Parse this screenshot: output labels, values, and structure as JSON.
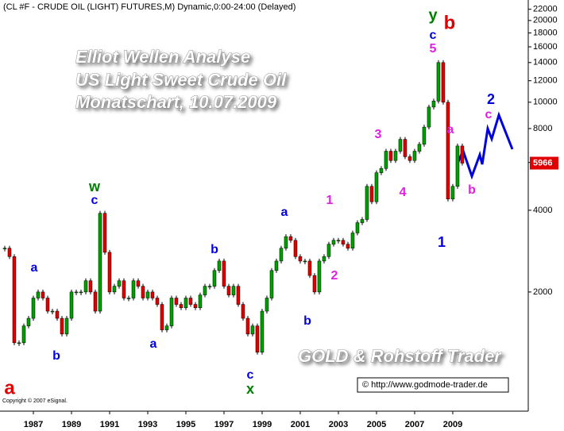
{
  "chart_data": {
    "type": "candlestick",
    "title": "(CL #F - CRUDE OIL (LIGHT) FUTURES,M) Dynamic,0:00-24:00 (Delayed)",
    "watermark": [
      "Elliot Wellen Analyse",
      "US Light Sweet Crude Oil",
      "Monatschart, 10.07.2009"
    ],
    "brand": "GOLD & Rohstoff Trader",
    "url": "© http://www.godmode-trader.de",
    "copyright": "Copyright © 2007 eSignal.",
    "y_scale": "log",
    "up_color": "#00a000",
    "down_color": "#e00000",
    "last_price": 5966,
    "x": [
      1985.5,
      1985.75,
      1986,
      1986.25,
      1986.5,
      1986.75,
      1987,
      1987.25,
      1987.5,
      1987.75,
      1988,
      1988.25,
      1988.5,
      1988.75,
      1989,
      1989.25,
      1989.5,
      1989.75,
      1990,
      1990.25,
      1990.5,
      1990.75,
      1991,
      1991.25,
      1991.5,
      1991.75,
      1992,
      1992.25,
      1992.5,
      1992.75,
      1993,
      1993.25,
      1993.5,
      1993.75,
      1994,
      1994.25,
      1994.5,
      1994.75,
      1995,
      1995.25,
      1995.5,
      1995.75,
      1996,
      1996.25,
      1996.5,
      1996.75,
      1997,
      1997.25,
      1997.5,
      1997.75,
      1998,
      1998.25,
      1998.5,
      1998.75,
      1999,
      1999.25,
      1999.5,
      1999.75,
      2000,
      2000.25,
      2000.5,
      2000.75,
      2001,
      2001.25,
      2001.5,
      2001.75,
      2002,
      2002.25,
      2002.5,
      2002.75,
      2003,
      2003.25,
      2003.5,
      2003.75,
      2004,
      2004.25,
      2004.5,
      2004.75,
      2005,
      2005.25,
      2005.5,
      2005.75,
      2006,
      2006.25,
      2006.5,
      2006.75,
      2007,
      2007.25,
      2007.5,
      2007.75,
      2008,
      2008.25,
      2008.5,
      2008.75,
      2009,
      2009.25,
      2009.5
    ],
    "values": [
      2900,
      2700,
      1300,
      1300,
      1500,
      1600,
      1900,
      2000,
      1900,
      1700,
      1700,
      1600,
      1400,
      1600,
      2000,
      2000,
      2000,
      2200,
      2000,
      1700,
      3900,
      2800,
      2000,
      2100,
      2200,
      1900,
      1900,
      2200,
      2100,
      1900,
      2000,
      1900,
      1800,
      1450,
      1500,
      1900,
      1800,
      1750,
      1900,
      1800,
      1750,
      1950,
      2100,
      2100,
      2400,
      2600,
      2100,
      1950,
      2100,
      1800,
      1600,
      1400,
      1500,
      1200,
      1700,
      1900,
      2400,
      2600,
      2900,
      3200,
      3100,
      2700,
      2600,
      2600,
      2300,
      2000,
      2600,
      2700,
      3000,
      3100,
      3100,
      3000,
      2900,
      3300,
      3600,
      3700,
      4900,
      4300,
      5500,
      5700,
      6600,
      6100,
      6600,
      7300,
      6300,
      6100,
      6600,
      7000,
      8100,
      9600,
      10100,
      14000,
      10000,
      4400,
      4900,
      6900,
      5966
    ],
    "xlim": [
      1985.25,
      2012.96
    ],
    "ylim": [
      728,
      23800
    ],
    "xticks": [
      1987,
      1989,
      1991,
      1993,
      1995,
      1997,
      1999,
      2001,
      2003,
      2005,
      2007,
      2009
    ],
    "yticks": [
      2000,
      4000,
      6000,
      8000,
      10000,
      12000,
      14000,
      16000,
      18000,
      20000,
      22000
    ],
    "annotations": [
      {
        "text": "a",
        "color": "#e00000"
      },
      {
        "text": "a",
        "color": "#0000e0"
      },
      {
        "text": "b",
        "color": "#0000e0"
      },
      {
        "text": "w",
        "color": "#008000"
      },
      {
        "text": "c",
        "color": "#0000e0"
      },
      {
        "text": "a",
        "color": "#0000e0"
      },
      {
        "text": "b",
        "color": "#0000e0"
      },
      {
        "text": "c",
        "color": "#0000e0"
      },
      {
        "text": "x",
        "color": "#008000"
      },
      {
        "text": "a",
        "color": "#0000e0"
      },
      {
        "text": "b",
        "color": "#0000e0"
      },
      {
        "text": "1",
        "color": "#e020e0"
      },
      {
        "text": "2",
        "color": "#e020e0"
      },
      {
        "text": "3",
        "color": "#e020e0"
      },
      {
        "text": "4",
        "color": "#e020e0"
      },
      {
        "text": "5",
        "color": "#e020e0"
      },
      {
        "text": "c",
        "color": "#0000e0"
      },
      {
        "text": "y",
        "color": "#008000"
      },
      {
        "text": "b",
        "color": "#e00000"
      },
      {
        "text": "a",
        "color": "#e020e0"
      },
      {
        "text": "b",
        "color": "#e020e0"
      },
      {
        "text": "1",
        "color": "#0000e0"
      },
      {
        "text": "c",
        "color": "#e020e0"
      },
      {
        "text": "2",
        "color": "#0000e0"
      }
    ]
  }
}
